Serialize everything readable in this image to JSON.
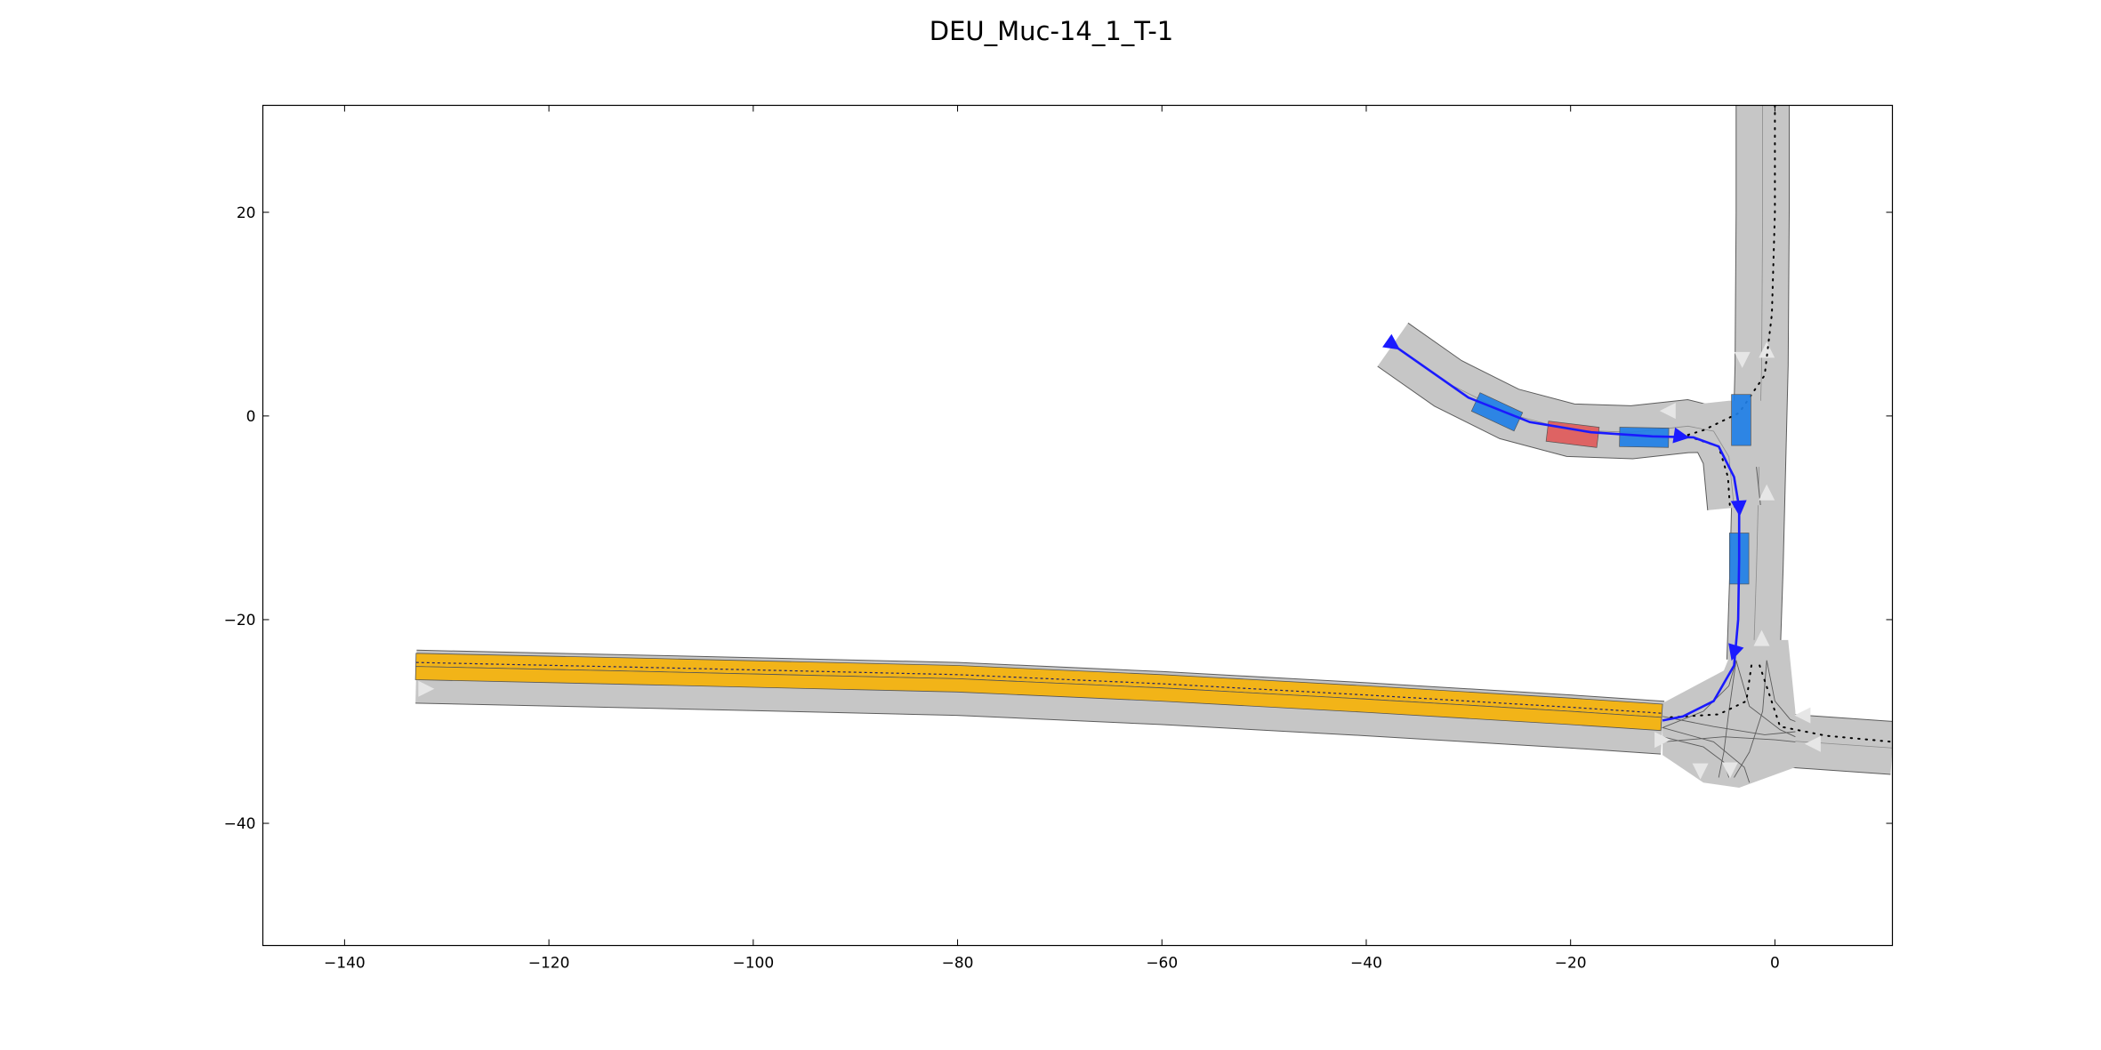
{
  "chart_data": {
    "type": "scenario-plot",
    "title": "DEU_Muc-14_1_T-1",
    "xlim": [
      -148,
      11.5
    ],
    "ylim": [
      -52,
      30.5
    ],
    "xticks": [
      -140,
      -120,
      -100,
      -80,
      -60,
      -40,
      -20,
      0
    ],
    "yticks": [
      20,
      0,
      -20,
      -40
    ],
    "colors": {
      "road": "#c6c6c6",
      "road_edge": "#5c5c5c",
      "lane_divider": "#8c8c8c",
      "goal_region": "#f2b418",
      "ego_vehicle": "#e05a5a",
      "other_vehicle": "#1f7fe6",
      "trajectory": "#1a1aff",
      "arrow": "#e6e6e6"
    },
    "lanelets": [
      {
        "name": "west-road",
        "width": 2.6,
        "offset": 1.3,
        "center": [
          [
            -133,
            -25.6
          ],
          [
            -110,
            -26.1
          ],
          [
            -80,
            -26.8
          ],
          [
            -60,
            -27.7
          ],
          [
            -40,
            -28.8
          ],
          [
            -20,
            -30.0
          ],
          [
            -11,
            -30.6
          ]
        ]
      },
      {
        "name": "north-road",
        "width": 2.6,
        "offset": 1.3,
        "center": [
          [
            -1.2,
            31
          ],
          [
            -1.2,
            20
          ],
          [
            -1.3,
            5
          ],
          [
            -1.8,
            -15
          ],
          [
            -2.1,
            -24
          ]
        ]
      },
      {
        "name": "east-road",
        "width": 2.6,
        "offset": 1.3,
        "center": [
          [
            0,
            -31.8
          ],
          [
            11.5,
            -32.6
          ]
        ]
      },
      {
        "name": "ramp",
        "width": 2.6,
        "offset": 1.3,
        "center": [
          [
            -37.4,
            7.0
          ],
          [
            -32,
            3.2
          ],
          [
            -26,
            0.2
          ],
          [
            -20,
            -1.4
          ],
          [
            -14,
            -1.6
          ],
          [
            -8.5,
            -1.0
          ],
          [
            -6,
            -1.5
          ],
          [
            -4.5,
            -4.0
          ],
          [
            -4.0,
            -9.0
          ]
        ]
      }
    ],
    "intersection_curves": [
      [
        [
          -11,
          -30.6
        ],
        [
          -7,
          -29.0
        ],
        [
          -4.5,
          -26.5
        ],
        [
          -3.8,
          -24.0
        ]
      ],
      [
        [
          -11,
          -30.6
        ],
        [
          -6,
          -32.0
        ],
        [
          -3.0,
          -34.5
        ],
        [
          -2.5,
          -36.0
        ]
      ],
      [
        [
          -3.8,
          -24.0
        ],
        [
          -4.5,
          -29.0
        ],
        [
          -5.0,
          -33.0
        ],
        [
          -5.5,
          -35.5
        ]
      ],
      [
        [
          -0.8,
          -24.0
        ],
        [
          -1.2,
          -29.0
        ],
        [
          -2.5,
          -33.0
        ],
        [
          -4.0,
          -35.5
        ]
      ],
      [
        [
          -3.8,
          -24.0
        ],
        [
          -2.5,
          -28.5
        ],
        [
          0.5,
          -30.8
        ],
        [
          2.0,
          -31.5
        ]
      ],
      [
        [
          -11,
          -32.0
        ],
        [
          -5,
          -31.5
        ],
        [
          0,
          -31.8
        ],
        [
          2.0,
          -32.0
        ]
      ],
      [
        [
          -11,
          -29.5
        ],
        [
          -6,
          -30.5
        ],
        [
          -1,
          -31.3
        ],
        [
          2.0,
          -31.0
        ]
      ],
      [
        [
          -0.8,
          -24.0
        ],
        [
          0.0,
          -28.0
        ],
        [
          1.5,
          -29.8
        ],
        [
          2.0,
          -30.0
        ]
      ],
      [
        [
          -11,
          -31.5
        ],
        [
          -7,
          -32.5
        ],
        [
          -5,
          -34.0
        ],
        [
          -4.5,
          -35.5
        ]
      ]
    ],
    "goal_region": {
      "polyline": [
        [
          -133,
          -23.3
        ],
        [
          -110,
          -23.8
        ],
        [
          -80,
          -24.5
        ],
        [
          -60,
          -25.4
        ],
        [
          -40,
          -26.5
        ],
        [
          -20,
          -27.7
        ],
        [
          -11,
          -28.3
        ]
      ],
      "width": 1.3
    },
    "goal_centerline": [
      [
        -133,
        -24.2
      ],
      [
        -110,
        -24.7
      ],
      [
        -80,
        -25.4
      ],
      [
        -60,
        -26.3
      ],
      [
        -40,
        -27.4
      ],
      [
        -20,
        -28.6
      ],
      [
        -11,
        -29.2
      ]
    ],
    "ego_vehicle": {
      "x": -19.8,
      "y": -1.8,
      "length": 5.0,
      "width": 2.0,
      "heading": -7
    },
    "other_vehicles": [
      {
        "x": -27.2,
        "y": 0.4,
        "length": 4.6,
        "width": 2.0,
        "heading": -25
      },
      {
        "x": -12.8,
        "y": -2.1,
        "length": 4.8,
        "width": 1.9,
        "heading": -1
      },
      {
        "x": -3.3,
        "y": -0.4,
        "length": 5.0,
        "width": 1.9,
        "heading": 90
      },
      {
        "x": -3.5,
        "y": -14.0,
        "length": 5.0,
        "width": 1.9,
        "heading": 90
      }
    ],
    "trajectory": [
      [
        -37.4,
        7.0
      ],
      [
        -30,
        1.8
      ],
      [
        -24,
        -0.6
      ],
      [
        -18,
        -1.6
      ],
      [
        -12,
        -2.0
      ],
      [
        -8,
        -2.1
      ],
      [
        -5.5,
        -3.0
      ],
      [
        -4.0,
        -6.0
      ],
      [
        -3.5,
        -9.0
      ],
      [
        -3.5,
        -14
      ],
      [
        -3.6,
        -20
      ],
      [
        -4.0,
        -24.5
      ],
      [
        -6.0,
        -28.0
      ],
      [
        -9.0,
        -29.5
      ],
      [
        -11,
        -29.9
      ]
    ],
    "trajectory_markers": [
      [
        -37.4,
        7.0
      ],
      [
        -9.2,
        -2.0
      ],
      [
        -3.5,
        -9.0
      ],
      [
        -4.0,
        -23.2
      ]
    ],
    "dotted_paths": [
      [
        [
          0,
          30.5
        ],
        [
          0,
          20
        ],
        [
          -0.3,
          10
        ],
        [
          -1.0,
          4.0
        ],
        [
          -3.5,
          0.3
        ],
        [
          -7.0,
          -1.4
        ],
        [
          -9.0,
          -2.0
        ]
      ],
      [
        [
          -8.5,
          -2.0
        ],
        [
          -5.5,
          -3.0
        ],
        [
          -4.6,
          -6.0
        ],
        [
          -4.4,
          -9.0
        ]
      ],
      [
        [
          -2.3,
          -24.5
        ],
        [
          -2.8,
          -28.0
        ],
        [
          -5.5,
          -29.3
        ],
        [
          -10.5,
          -29.6
        ]
      ],
      [
        [
          -1.5,
          -24.5
        ],
        [
          0.5,
          -30.5
        ],
        [
          5,
          -31.4
        ],
        [
          11.5,
          -32.0
        ]
      ]
    ],
    "lane_arrows": [
      {
        "x": -132,
        "y": -26.8,
        "angle": 0
      },
      {
        "x": -11,
        "y": -31.8,
        "angle": 0
      },
      {
        "x": -10.5,
        "y": 0.5,
        "angle": 180
      },
      {
        "x": -3.2,
        "y": 5.5,
        "angle": -90
      },
      {
        "x": -0.8,
        "y": 6.5,
        "angle": 90
      },
      {
        "x": -0.8,
        "y": -7.5,
        "angle": 90
      },
      {
        "x": -1.3,
        "y": -21.8,
        "angle": 90
      },
      {
        "x": 2.7,
        "y": -29.4,
        "angle": 180
      },
      {
        "x": 3.7,
        "y": -32.2,
        "angle": 180
      },
      {
        "x": -7.3,
        "y": -34.9,
        "angle": -90
      },
      {
        "x": -4.4,
        "y": -34.8,
        "angle": -90
      }
    ]
  }
}
